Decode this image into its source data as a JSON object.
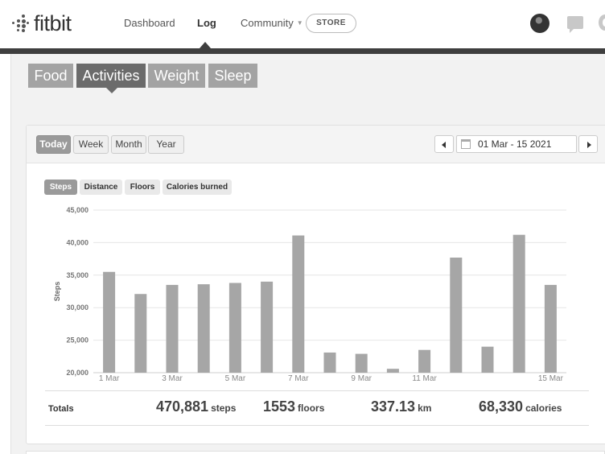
{
  "nav": {
    "logo_text": "fitbit",
    "links": [
      "Dashboard",
      "Log",
      "Community"
    ],
    "active": "Log",
    "store_label": "STORE"
  },
  "categories": {
    "tabs": [
      "Food",
      "Activities",
      "Weight",
      "Sleep"
    ],
    "active": "Activities"
  },
  "period": {
    "buttons": [
      "Today",
      "Week",
      "Month",
      "Year"
    ],
    "active": "Today",
    "date_range": "01 Mar - 15 2021"
  },
  "metrics": {
    "pills": [
      "Steps",
      "Distance",
      "Floors",
      "Calories burned"
    ],
    "active": "Steps"
  },
  "chart_data": {
    "type": "bar",
    "ylabel": "Steps",
    "ylim": [
      20000,
      45000
    ],
    "yticks": [
      "20,000",
      "25,000",
      "30,000",
      "35,000",
      "40,000",
      "45,000"
    ],
    "categories": [
      "1 Mar",
      "2 Mar",
      "3 Mar",
      "4 Mar",
      "5 Mar",
      "6 Mar",
      "7 Mar",
      "8 Mar",
      "9 Mar",
      "10 Mar",
      "11 Mar",
      "12 Mar",
      "13 Mar",
      "14 Mar",
      "15 Mar"
    ],
    "xtick_labels": [
      "1 Mar",
      "3 Mar",
      "5 Mar",
      "7 Mar",
      "9 Mar",
      "11 Mar",
      "15 Mar"
    ],
    "values": [
      35500,
      32100,
      33500,
      33600,
      33800,
      34000,
      41100,
      23100,
      22900,
      20600,
      23500,
      37700,
      24000,
      41200,
      33500
    ],
    "bar_color": "#a6a6a6",
    "grid": true
  },
  "totals": {
    "label": "Totals",
    "steps": "470,881",
    "steps_unit": "steps",
    "floors": "1553",
    "floors_unit": "floors",
    "km": "337.13",
    "km_unit": "km",
    "calories": "68,330",
    "calories_unit": "calories"
  }
}
